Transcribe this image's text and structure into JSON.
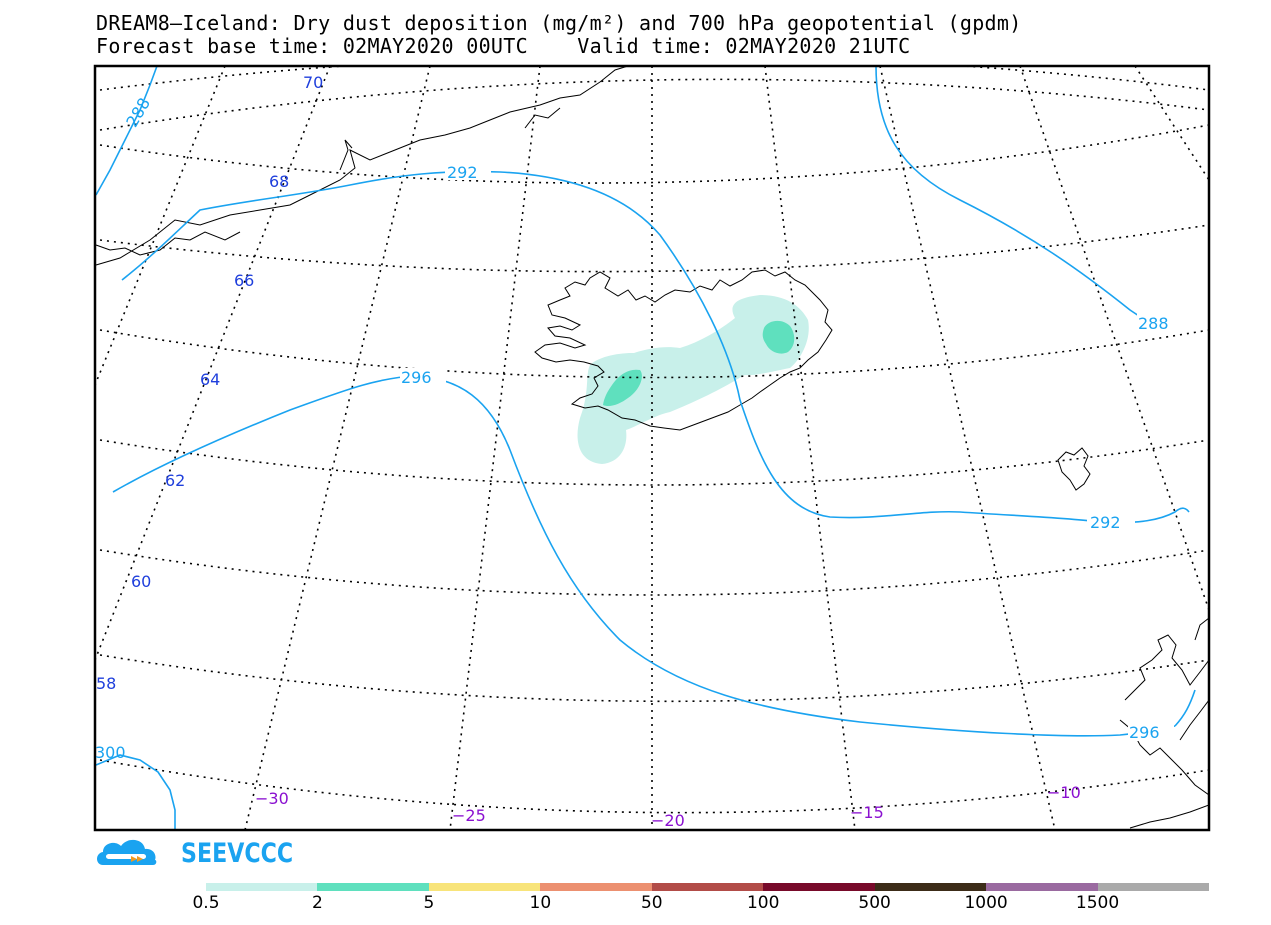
{
  "title": {
    "line1": "DREAM8–Iceland: Dry dust deposition (mg/m²) and 700 hPa geopotential (gpdm)",
    "line2": "Forecast base time: 02MAY2020 00UTC    Valid time: 02MAY2020 21UTC"
  },
  "map": {
    "latitude_labels": [
      "70",
      "68",
      "66",
      "64",
      "62",
      "60",
      "58"
    ],
    "longitude_labels": [
      "−30",
      "−25",
      "−20",
      "−15",
      "−10"
    ],
    "contours": [
      {
        "value": "288",
        "labels": [
          "288",
          "288"
        ]
      },
      {
        "value": "292",
        "labels": [
          "292",
          "292"
        ]
      },
      {
        "value": "296",
        "labels": [
          "296",
          "296"
        ]
      },
      {
        "value": "300",
        "labels": [
          "300"
        ]
      }
    ],
    "colors": {
      "contour": "#1aa3f0",
      "latitude_label": "#1f3fdc",
      "longitude_label": "#8a10d0",
      "coastline": "#000000",
      "graticule": "#000000"
    }
  },
  "logo": {
    "text": "SEEVCCC",
    "icon": "cloud-logo-icon"
  },
  "legend": {
    "labels": [
      "0.5",
      "2",
      "5",
      "10",
      "50",
      "100",
      "500",
      "1000",
      "1500"
    ],
    "colors": [
      "#c8f0ea",
      "#5fe0be",
      "#f8e47a",
      "#ec9070",
      "#b24c48",
      "#780a2a",
      "#3c2c18",
      "#9a6aa0",
      "#aaaaaa"
    ]
  }
}
